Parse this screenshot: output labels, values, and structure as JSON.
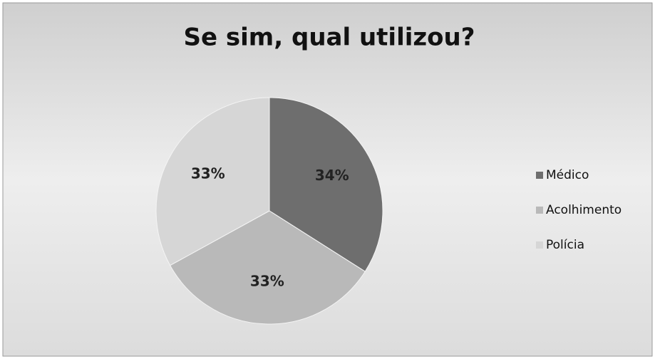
{
  "chart_data": {
    "type": "pie",
    "title": "Se sim, qual utilizou?",
    "categories": [
      "Médico",
      "Acolhimento",
      "Polícia"
    ],
    "values": [
      34,
      33,
      33
    ],
    "value_labels": [
      "34%",
      "33%",
      "33%"
    ],
    "colors": [
      "#6e6e6e",
      "#b9b9b9",
      "#d6d6d6"
    ],
    "legend": "right"
  }
}
